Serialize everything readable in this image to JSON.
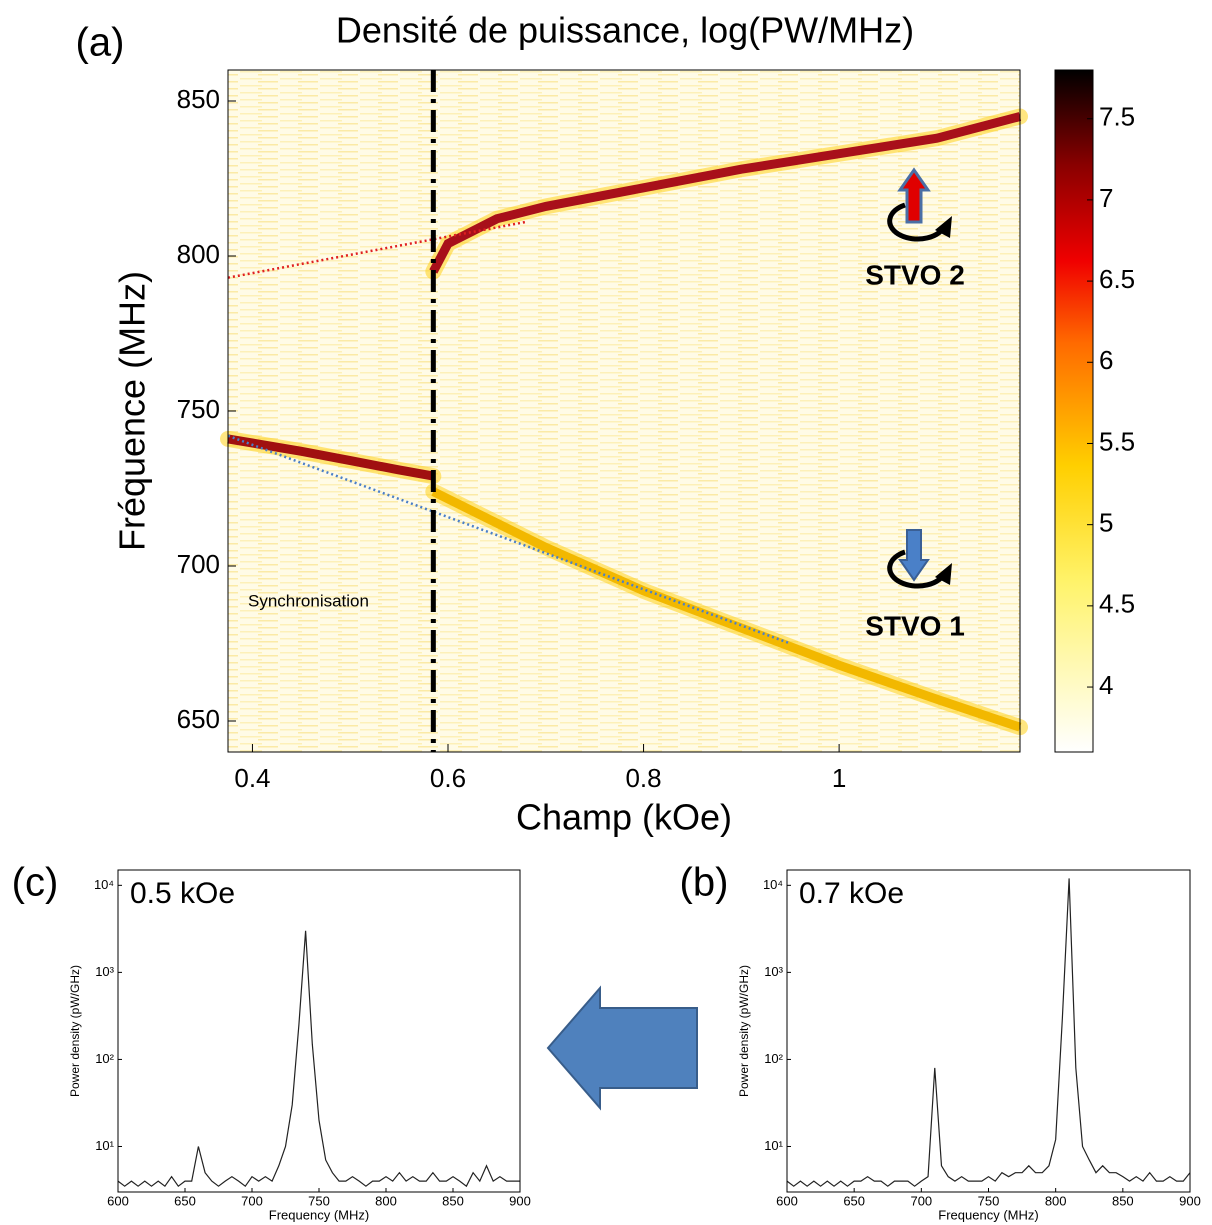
{
  "chart_data": [
    {
      "type": "heatmap",
      "panel": "(a)",
      "title": "Densité de puissance, log(PW/MHz)",
      "xlabel": "Champ (kOe)",
      "ylabel": "Fréquence (MHz)",
      "xlim": [
        0.375,
        1.185
      ],
      "ylim": [
        640,
        860
      ],
      "xticks": [
        0.4,
        0.6,
        0.8,
        1
      ],
      "yticks": [
        650,
        700,
        750,
        800,
        850
      ],
      "vline": 0.585,
      "colorbar": {
        "clim": [
          3.6,
          7.8
        ],
        "ticks": [
          4,
          4.5,
          5,
          5.5,
          6,
          6.5,
          7,
          7.5
        ]
      },
      "annotations": [
        "Synchronisation",
        "STVO 2",
        "STVO 1"
      ],
      "series": [
        {
          "color": "#a8101a",
          "x": [
            0.585,
            0.6,
            0.65,
            0.7,
            0.8,
            0.9,
            1.0,
            1.1,
            1.185
          ],
          "values": [
            795,
            804,
            812,
            816,
            822,
            828,
            833,
            838,
            845
          ]
        },
        {
          "color": "#a01010",
          "x": [
            0.375,
            0.45,
            0.5,
            0.55,
            0.585
          ],
          "values": [
            741,
            737,
            734,
            731,
            729
          ]
        },
        {
          "color": "#f2b800",
          "x": [
            0.585,
            0.7,
            0.8,
            0.9,
            1.0,
            1.1,
            1.185
          ],
          "values": [
            724,
            706,
            692,
            680,
            668,
            657,
            648
          ]
        },
        {
          "color": "#e02020",
          "dash": true,
          "x": [
            0.375,
            0.68
          ],
          "values": [
            793,
            811
          ]
        },
        {
          "color": "#4a7fc8",
          "dash": true,
          "x": [
            0.375,
            0.95
          ],
          "values": [
            742,
            675
          ]
        }
      ]
    },
    {
      "type": "line",
      "panel": "(c)",
      "annotation": "0.5 kOe",
      "log_y": true,
      "xlabel": "Frequency (MHz)",
      "ylabel": "Power density (pW/GHz)",
      "xlim": [
        600,
        900
      ],
      "ylim": [
        3,
        15000
      ],
      "xticks": [
        600,
        650,
        700,
        750,
        800,
        850,
        900
      ],
      "yticks": [
        {
          "value": 10,
          "label": "10¹"
        },
        {
          "value": 100,
          "label": "10²"
        },
        {
          "value": 1000,
          "label": "10³"
        },
        {
          "value": 10000,
          "label": "10⁴"
        }
      ],
      "x": [
        600,
        605,
        610,
        615,
        620,
        625,
        630,
        635,
        640,
        645,
        650,
        655,
        660,
        665,
        670,
        675,
        680,
        685,
        690,
        695,
        700,
        705,
        710,
        715,
        720,
        725,
        730,
        735,
        740,
        745,
        750,
        755,
        760,
        765,
        770,
        775,
        780,
        785,
        790,
        795,
        800,
        805,
        810,
        815,
        820,
        825,
        830,
        835,
        840,
        845,
        850,
        855,
        860,
        865,
        870,
        875,
        880,
        885,
        890,
        895,
        900
      ],
      "series": [
        {
          "color": "#222222",
          "values": [
            4,
            3.5,
            4,
            3.5,
            4,
            3.5,
            4,
            3.5,
            4.5,
            3.5,
            4,
            4,
            10,
            5,
            4,
            3.5,
            4,
            4.5,
            4,
            3.5,
            4.5,
            4,
            4.5,
            4,
            6,
            10,
            30,
            250,
            3000,
            150,
            20,
            7,
            5,
            4,
            4,
            4.5,
            4,
            3.5,
            4,
            4,
            4.5,
            4,
            5,
            4,
            4.5,
            4,
            4,
            5,
            4,
            4,
            4.5,
            4,
            3.5,
            5,
            4,
            6,
            4,
            4.5,
            4,
            4,
            4
          ]
        }
      ]
    },
    {
      "type": "line",
      "panel": "(b)",
      "annotation": "0.7 kOe",
      "log_y": true,
      "xlabel": "Frequency (MHz)",
      "ylabel": "Power density (pW/GHz)",
      "xlim": [
        600,
        900
      ],
      "ylim": [
        3,
        15000
      ],
      "xticks": [
        600,
        650,
        700,
        750,
        800,
        850,
        900
      ],
      "yticks": [
        {
          "value": 10,
          "label": "10¹"
        },
        {
          "value": 100,
          "label": "10²"
        },
        {
          "value": 1000,
          "label": "10³"
        },
        {
          "value": 10000,
          "label": "10⁴"
        }
      ],
      "x": [
        600,
        605,
        610,
        615,
        620,
        625,
        630,
        635,
        640,
        645,
        650,
        655,
        660,
        665,
        670,
        675,
        680,
        685,
        690,
        695,
        700,
        705,
        710,
        715,
        720,
        725,
        730,
        735,
        740,
        745,
        750,
        755,
        760,
        765,
        770,
        775,
        780,
        785,
        790,
        795,
        800,
        805,
        810,
        815,
        820,
        825,
        830,
        835,
        840,
        845,
        850,
        855,
        860,
        865,
        870,
        875,
        880,
        885,
        890,
        895,
        900
      ],
      "series": [
        {
          "color": "#222222",
          "values": [
            4,
            3.5,
            4,
            3.5,
            4,
            3.5,
            4,
            3.5,
            4,
            3.5,
            4,
            4,
            4.5,
            4,
            4,
            3.5,
            4,
            4,
            4,
            3.5,
            4,
            4.5,
            80,
            6,
            4.5,
            4,
            4.5,
            4,
            4,
            4,
            4.5,
            4,
            5,
            4.5,
            5,
            5,
            6,
            5,
            5,
            6,
            12,
            300,
            12000,
            80,
            10,
            7,
            5,
            6,
            5,
            5,
            4.5,
            4,
            4.5,
            4,
            5,
            4,
            4,
            4.5,
            4,
            4,
            5
          ]
        }
      ]
    }
  ]
}
